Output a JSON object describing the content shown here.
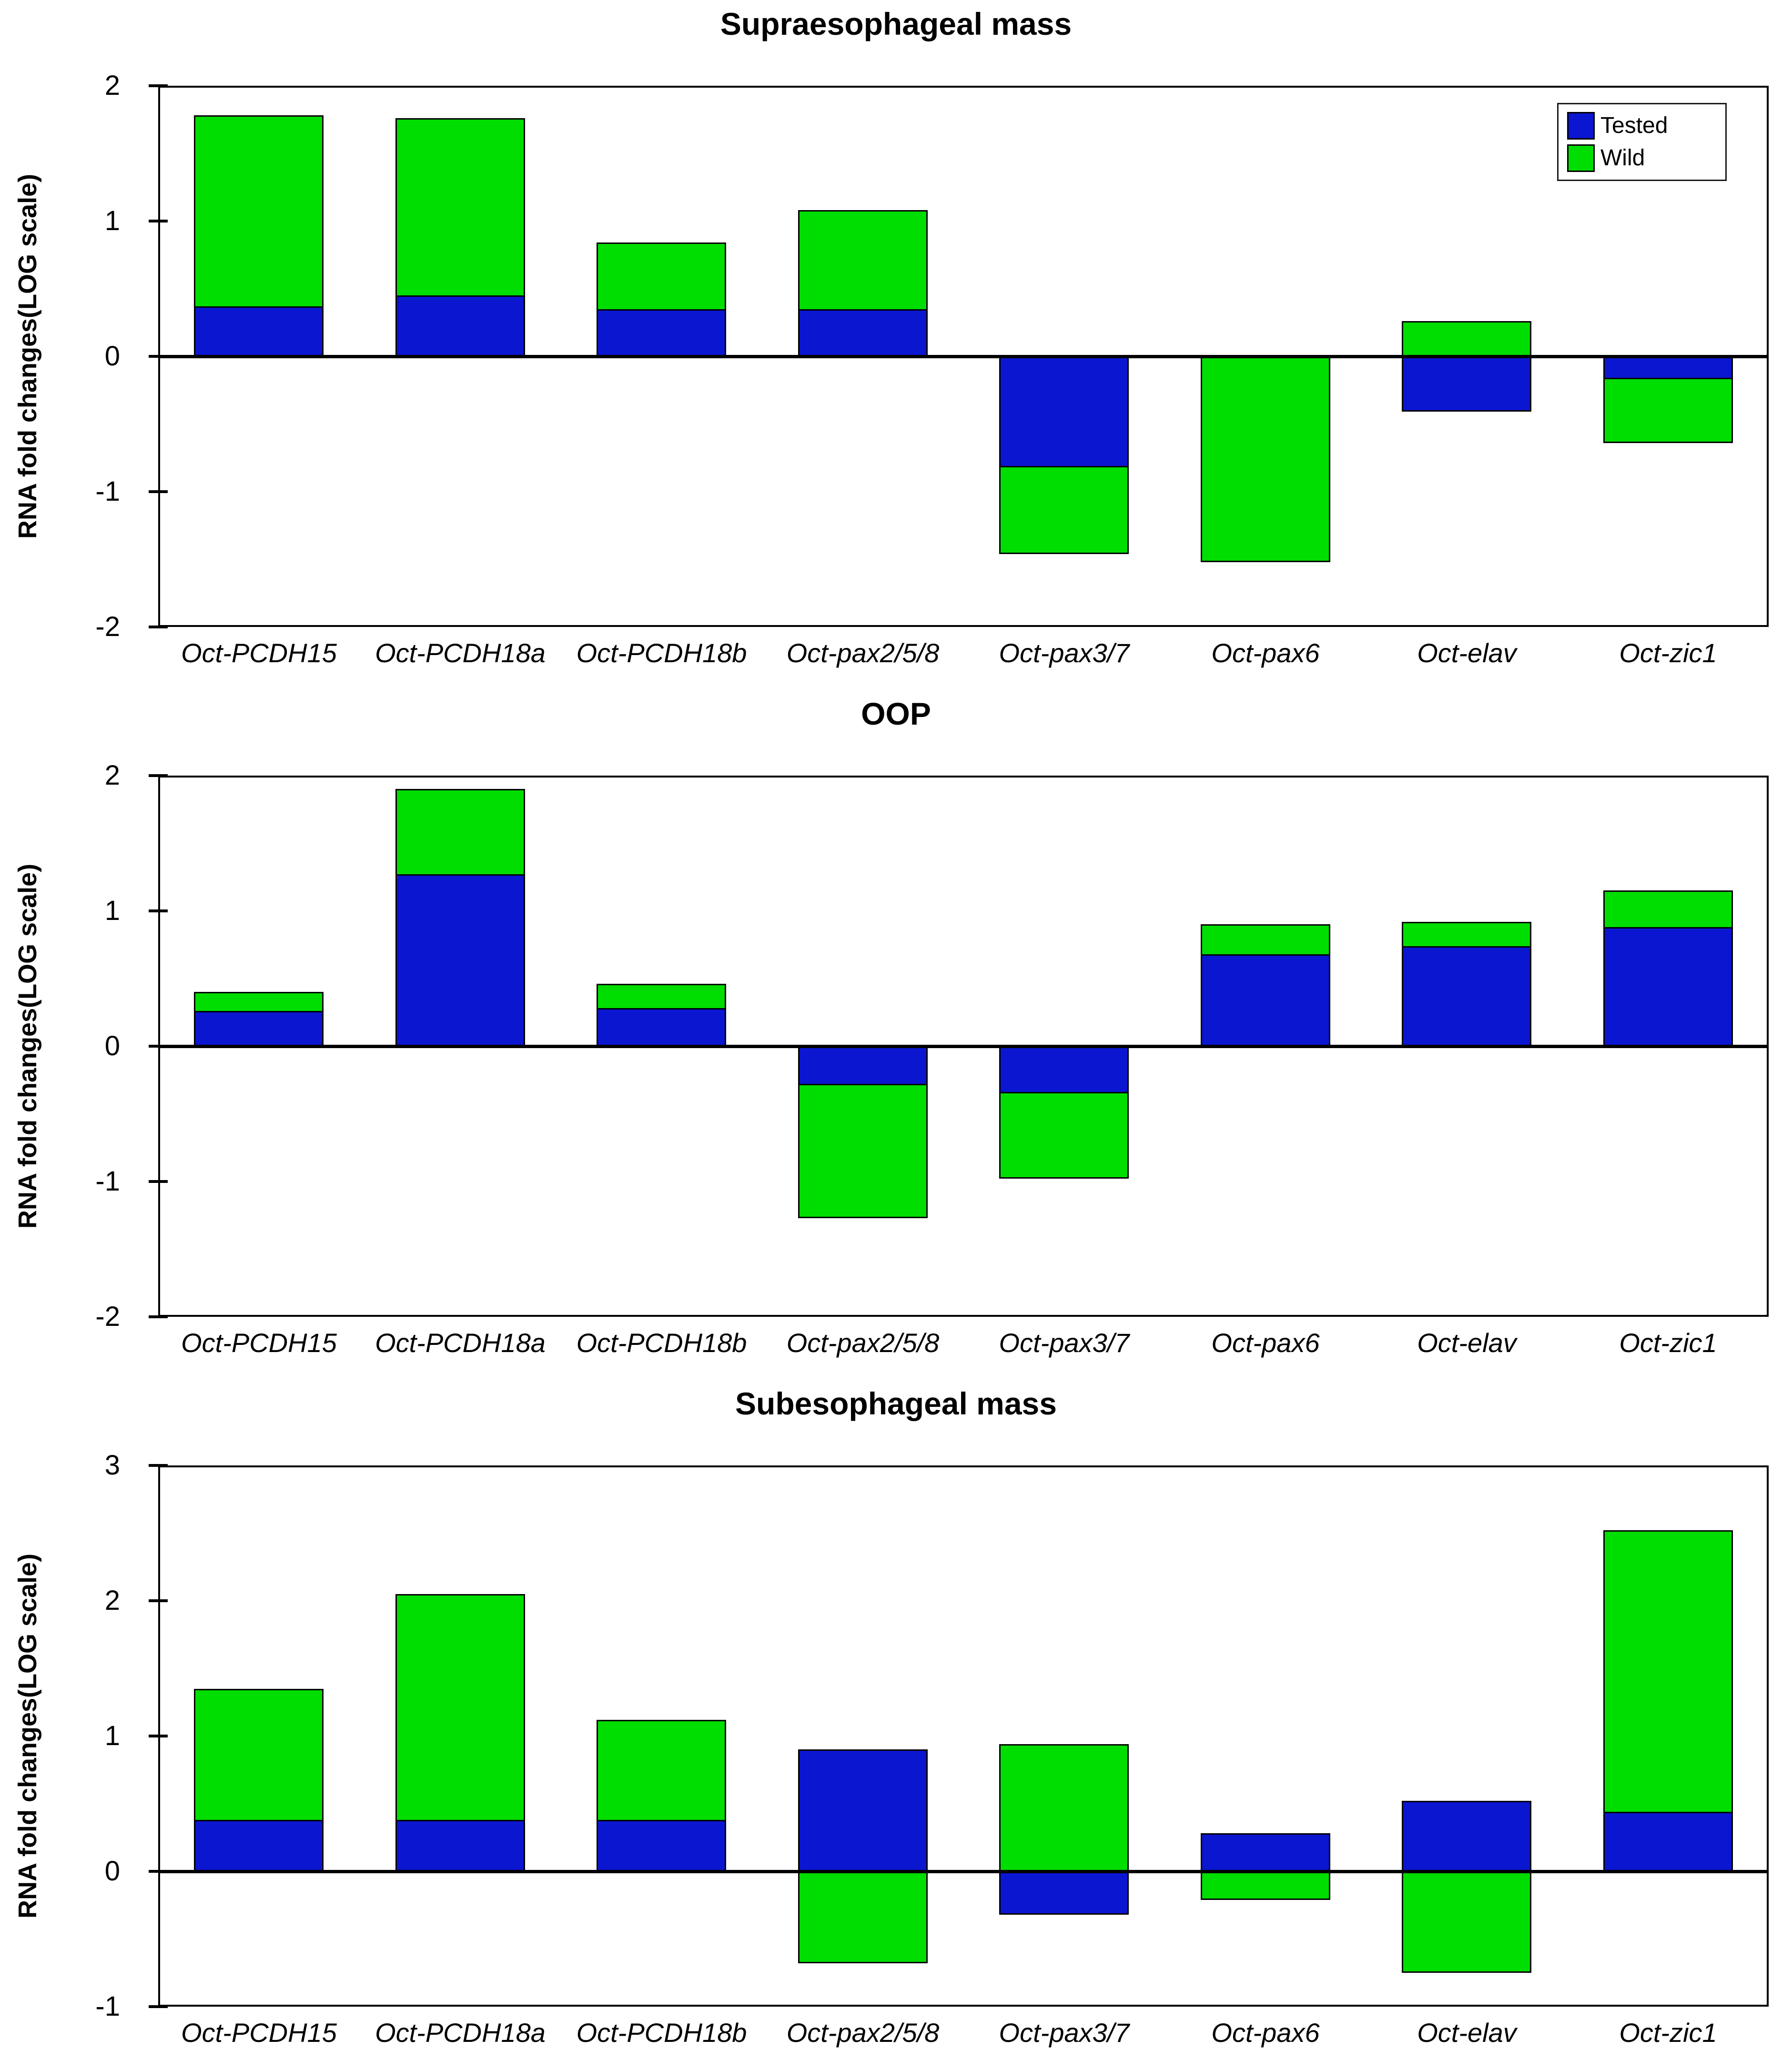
{
  "figure": {
    "background": "#ffffff",
    "axis_color": "#000000",
    "legend": {
      "items": [
        {
          "label": "Tested",
          "color": "#0b16d0"
        },
        {
          "label": "Wild",
          "color": "#00dd00"
        }
      ],
      "position": "top-right-of-first-chart"
    }
  },
  "chart_data": [
    {
      "type": "bar",
      "title": "Supraesophageal mass",
      "ylabel": "RNA fold changes(LOG scale)",
      "xlabel": "",
      "ylim": [
        -2,
        2
      ],
      "yticks": [
        2,
        1,
        0,
        -1,
        -2
      ],
      "grid": false,
      "legend_position": "top-right",
      "categories": [
        "Oct-PCDH15",
        "Oct-PCDH18a",
        "Oct-PCDH18b",
        "Oct-pax2/5/8",
        "Oct-pax3/7",
        "Oct-pax6",
        "Oct-elav",
        "Oct-zic1"
      ],
      "series": [
        {
          "name": "Tested",
          "color": "#0b16d0",
          "values": [
            0.37,
            0.45,
            0.35,
            0.35,
            -0.82,
            0.0,
            -0.41,
            -0.17
          ]
        },
        {
          "name": "Wild",
          "color": "#00dd00",
          "values": [
            1.78,
            1.76,
            0.84,
            1.08,
            -1.46,
            -1.52,
            0.26,
            -0.64
          ]
        }
      ]
    },
    {
      "type": "bar",
      "title": "OOP",
      "ylabel": "RNA fold changes(LOG scale)",
      "xlabel": "",
      "ylim": [
        -2,
        2
      ],
      "yticks": [
        2,
        1,
        0,
        -1,
        -2
      ],
      "grid": false,
      "legend_position": "none",
      "categories": [
        "Oct-PCDH15",
        "Oct-PCDH18a",
        "Oct-PCDH18b",
        "Oct-pax2/5/8",
        "Oct-pax3/7",
        "Oct-pax6",
        "Oct-elav",
        "Oct-zic1"
      ],
      "series": [
        {
          "name": "Tested",
          "color": "#0b16d0",
          "values": [
            0.26,
            1.27,
            0.28,
            -0.29,
            -0.35,
            0.68,
            0.74,
            0.88
          ]
        },
        {
          "name": "Wild",
          "color": "#00dd00",
          "values": [
            0.4,
            1.9,
            0.46,
            -1.27,
            -0.98,
            0.9,
            0.92,
            1.15
          ]
        }
      ]
    },
    {
      "type": "bar",
      "title": "Subesophageal mass",
      "ylabel": "RNA fold changes(LOG scale)",
      "xlabel": "",
      "ylim": [
        -1,
        3
      ],
      "yticks": [
        3,
        2,
        1,
        0,
        -1
      ],
      "grid": false,
      "legend_position": "none",
      "categories": [
        "Oct-PCDH15",
        "Oct-PCDH18a",
        "Oct-PCDH18b",
        "Oct-pax2/5/8",
        "Oct-pax3/7",
        "Oct-pax6",
        "Oct-elav",
        "Oct-zic1"
      ],
      "series": [
        {
          "name": "Tested",
          "color": "#0b16d0",
          "values": [
            0.38,
            0.38,
            0.38,
            0.9,
            -0.32,
            0.28,
            0.52,
            0.44
          ]
        },
        {
          "name": "Wild",
          "color": "#00dd00",
          "values": [
            1.35,
            2.05,
            1.12,
            -0.68,
            0.94,
            -0.21,
            -0.75,
            2.52
          ]
        }
      ]
    }
  ]
}
